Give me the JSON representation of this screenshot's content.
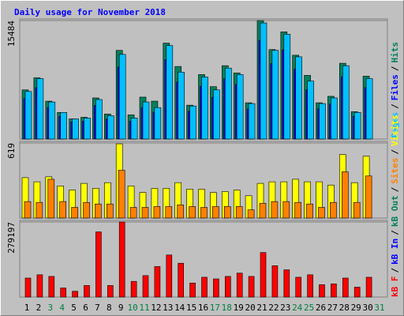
{
  "chart_data": [
    {
      "type": "bar",
      "title": "Daily usage for November 2018",
      "separator": "/",
      "ylim": [
        0,
        15484
      ],
      "yticks": [
        15484
      ],
      "series": [
        {
          "name": "Pages",
          "color": "#00c0ff",
          "values": [
            6215,
            7900,
            4845,
            3476,
            2633,
            2739,
            5161,
            3055,
            11060,
            2739,
            4845,
            4108,
            12218,
            8742,
            4319,
            8111,
            6425,
            9269,
            8426,
            4635,
            15168,
            11586,
            13693,
            10744,
            7584,
            4635,
            5372,
            9585,
            3476,
            7900,
            null
          ]
        },
        {
          "name": "Files",
          "color": "#0000ff",
          "values": [
            5283,
            6715,
            4118,
            2955,
            2238,
            2328,
            4387,
            2597,
            9401,
            2328,
            4118,
            3492,
            10385,
            7431,
            3671,
            6894,
            5461,
            7879,
            7162,
            3940,
            12893,
            9848,
            11639,
            9132,
            6446,
            3940,
            4566,
            8147,
            2955,
            6715,
            null
          ]
        },
        {
          "name": "Hits",
          "color": "#00805c",
          "values": [
            6425,
            8005,
            4950,
            3475,
            2633,
            2844,
            5372,
            3265,
            11587,
            3160,
            5477,
            4950,
            12535,
            9480,
            4424,
            8427,
            6847,
            9585,
            8637,
            4740,
            15484,
            11692,
            14009,
            10955,
            8321,
            4740,
            5583,
            9901,
            3581,
            8216,
            null
          ]
        }
      ]
    },
    {
      "type": "bar",
      "ylim": [
        0,
        619
      ],
      "yticks": [
        619
      ],
      "series": [
        {
          "name": "Sites",
          "color": "#ff8000",
          "values": [
            136,
            129,
            320,
            136,
            88,
            129,
            116,
            116,
            394,
            88,
            88,
            95,
            95,
            109,
            95,
            88,
            95,
            95,
            95,
            68,
            122,
            136,
            136,
            129,
            116,
            88,
            129,
            381,
            129,
            347,
            null
          ]
        },
        {
          "name": "Visits",
          "color": "#ffff00",
          "values": [
            333,
            299,
            340,
            265,
            231,
            286,
            245,
            292,
            612,
            265,
            211,
            245,
            245,
            292,
            238,
            238,
            211,
            218,
            231,
            184,
            286,
            299,
            299,
            320,
            299,
            299,
            272,
            524,
            292,
            510,
            null
          ]
        }
      ]
    },
    {
      "type": "bar",
      "ylim": [
        0,
        279197
      ],
      "yticks": [
        279197
      ],
      "categories": [
        "1",
        "2",
        "3",
        "4",
        "5",
        "6",
        "7",
        "8",
        "9",
        "10",
        "11",
        "12",
        "13",
        "14",
        "15",
        "16",
        "17",
        "18",
        "19",
        "20",
        "21",
        "22",
        "23",
        "24",
        "25",
        "26",
        "27",
        "28",
        "29",
        "30",
        "31"
      ],
      "category_colors": [
        "#000000",
        "#000000",
        "#008040",
        "#008040",
        "#000000",
        "#000000",
        "#000000",
        "#000000",
        "#000000",
        "#008040",
        "#008040",
        "#000000",
        "#000000",
        "#000000",
        "#000000",
        "#000000",
        "#008040",
        "#008040",
        "#000000",
        "#000000",
        "#000000",
        "#000000",
        "#000000",
        "#008040",
        "#008040",
        "#000000",
        "#000000",
        "#000000",
        "#000000",
        "#000000",
        "#008040"
      ],
      "series": [
        {
          "name": "kB F",
          "color": "#ff0000",
          "values": [
            70564,
            82836,
            76700,
            33748,
            21476,
            42952,
            242372,
            42952,
            279197,
            58292,
            79768,
            113516,
            156468,
            125788,
            52156,
            73632,
            67496,
            76700,
            88972,
            76700,
            165672,
            116584,
            101244,
            73632,
            82836,
            46020,
            49088,
            70564,
            36816,
            73632,
            null
          ]
        },
        {
          "name": "kB In",
          "color": "#0000ff",
          "values": [
            null,
            null,
            null,
            null,
            null,
            null,
            null,
            null,
            null,
            null,
            null,
            null,
            null,
            null,
            null,
            null,
            null,
            null,
            null,
            null,
            null,
            null,
            null,
            null,
            null,
            null,
            null,
            null,
            null,
            null,
            null
          ]
        },
        {
          "name": "kB Out",
          "color": "#00805c",
          "values": [
            null,
            null,
            null,
            null,
            null,
            null,
            null,
            null,
            null,
            null,
            null,
            null,
            null,
            null,
            null,
            null,
            null,
            null,
            null,
            null,
            null,
            null,
            null,
            null,
            null,
            null,
            null,
            null,
            null,
            null,
            null
          ]
        }
      ]
    }
  ]
}
